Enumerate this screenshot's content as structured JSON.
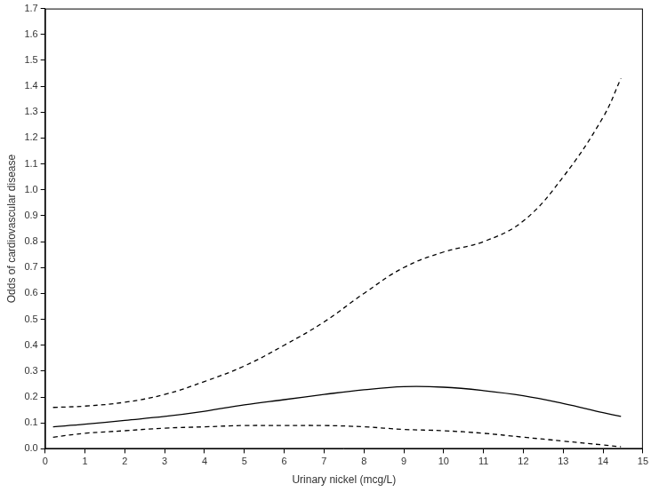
{
  "chart_data": {
    "type": "line",
    "x_label": "Urinary nickel (mcg/L)",
    "y_label": "Odds of cardiovascular disease",
    "x": [
      0.2,
      1,
      2,
      3,
      4,
      5,
      6,
      7,
      8,
      9,
      10,
      11,
      12,
      13,
      14,
      14.45
    ],
    "series": [
      {
        "color": "#000000",
        "line_style": "solid",
        "values": [
          0.085,
          0.095,
          0.11,
          0.125,
          0.145,
          0.17,
          0.19,
          0.21,
          0.228,
          0.24,
          0.238,
          0.225,
          0.205,
          0.175,
          0.14,
          0.125
        ]
      },
      {
        "color": "#000000",
        "line_style": "dashed",
        "values": [
          0.16,
          0.165,
          0.18,
          0.21,
          0.26,
          0.32,
          0.4,
          0.49,
          0.6,
          0.7,
          0.76,
          0.8,
          0.88,
          1.05,
          1.28,
          1.43
        ]
      },
      {
        "color": "#000000",
        "line_style": "dashed",
        "values": [
          0.045,
          0.06,
          0.07,
          0.08,
          0.085,
          0.09,
          0.09,
          0.09,
          0.085,
          0.075,
          0.07,
          0.06,
          0.045,
          0.03,
          0.015,
          0.008
        ]
      }
    ],
    "xlim": [
      0,
      15
    ],
    "xticks": [
      0,
      1,
      2,
      3,
      4,
      5,
      6,
      7,
      8,
      9,
      10,
      11,
      12,
      13,
      14,
      15
    ],
    "ylim": [
      0,
      1.7
    ],
    "yticks": [
      {
        "value": 0,
        "label": "0.0"
      },
      0.1,
      0.2,
      0.3,
      0.4,
      0.5,
      0.6,
      0.7,
      0.8,
      0.9,
      {
        "value": 1,
        "label": "1.0"
      },
      1.1,
      1.2,
      1.3,
      1.4,
      1.5,
      1.6,
      1.7
    ],
    "grid": false
  }
}
